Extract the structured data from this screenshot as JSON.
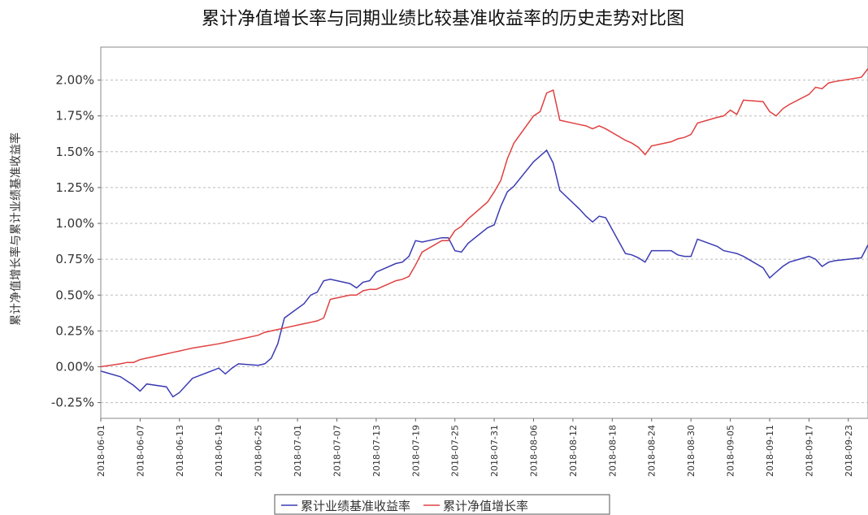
{
  "chart_data": {
    "type": "line",
    "title": "累计净值增长率与同期业绩比较基准收益率的历史走势对比图",
    "y_label": "累计净值增长率与累计业绩基准收益率",
    "x": [
      "2018-06-01",
      "2018-06-04",
      "2018-06-05",
      "2018-06-06",
      "2018-06-07",
      "2018-06-08",
      "2018-06-11",
      "2018-06-12",
      "2018-06-13",
      "2018-06-14",
      "2018-06-15",
      "2018-06-19",
      "2018-06-20",
      "2018-06-21",
      "2018-06-22",
      "2018-06-25",
      "2018-06-26",
      "2018-06-27",
      "2018-06-28",
      "2018-06-29",
      "2018-07-02",
      "2018-07-03",
      "2018-07-04",
      "2018-07-05",
      "2018-07-06",
      "2018-07-09",
      "2018-07-10",
      "2018-07-11",
      "2018-07-12",
      "2018-07-13",
      "2018-07-16",
      "2018-07-17",
      "2018-07-18",
      "2018-07-19",
      "2018-07-20",
      "2018-07-23",
      "2018-07-24",
      "2018-07-25",
      "2018-07-26",
      "2018-07-27",
      "2018-07-30",
      "2018-07-31",
      "2018-08-01",
      "2018-08-02",
      "2018-08-03",
      "2018-08-06",
      "2018-08-07",
      "2018-08-08",
      "2018-08-09",
      "2018-08-10",
      "2018-08-13",
      "2018-08-14",
      "2018-08-15",
      "2018-08-16",
      "2018-08-17",
      "2018-08-20",
      "2018-08-21",
      "2018-08-22",
      "2018-08-23",
      "2018-08-24",
      "2018-08-27",
      "2018-08-28",
      "2018-08-29",
      "2018-08-30",
      "2018-08-31",
      "2018-09-03",
      "2018-09-04",
      "2018-09-05",
      "2018-09-06",
      "2018-09-07",
      "2018-09-10",
      "2018-09-11",
      "2018-09-12",
      "2018-09-13",
      "2018-09-14",
      "2018-09-17",
      "2018-09-18",
      "2018-09-19",
      "2018-09-20",
      "2018-09-21",
      "2018-09-25",
      "2018-09-26"
    ],
    "series": [
      {
        "name": "累计业绩基准收益率",
        "color": "#3b3bb3",
        "values": [
          -0.03,
          -0.07,
          -0.1,
          -0.13,
          -0.17,
          -0.12,
          -0.14,
          -0.21,
          -0.18,
          -0.13,
          -0.08,
          -0.01,
          -0.05,
          -0.01,
          0.02,
          0.01,
          0.02,
          0.06,
          0.16,
          0.34,
          0.44,
          0.5,
          0.52,
          0.6,
          0.61,
          0.58,
          0.55,
          0.59,
          0.6,
          0.66,
          0.72,
          0.73,
          0.77,
          0.88,
          0.87,
          0.9,
          0.9,
          0.81,
          0.8,
          0.86,
          0.97,
          0.99,
          1.12,
          1.22,
          1.26,
          1.43,
          1.47,
          1.51,
          1.42,
          1.23,
          1.1,
          1.05,
          1.01,
          1.05,
          1.04,
          0.79,
          0.78,
          0.76,
          0.73,
          0.81,
          0.81,
          0.78,
          0.77,
          0.77,
          0.89,
          0.84,
          0.81,
          0.8,
          0.79,
          0.77,
          0.69,
          0.62,
          0.66,
          0.7,
          0.73,
          0.77,
          0.75,
          0.7,
          0.73,
          0.74,
          0.76,
          0.85
        ]
      },
      {
        "name": "累计净值增长率",
        "color": "#e04040",
        "values": [
          0.0,
          0.02,
          0.03,
          0.03,
          0.05,
          0.06,
          0.09,
          0.1,
          0.11,
          0.12,
          0.13,
          0.16,
          0.17,
          0.18,
          0.19,
          0.22,
          0.24,
          0.25,
          0.26,
          0.27,
          0.3,
          0.31,
          0.32,
          0.34,
          0.47,
          0.5,
          0.5,
          0.53,
          0.54,
          0.54,
          0.6,
          0.61,
          0.63,
          0.71,
          0.8,
          0.88,
          0.88,
          0.95,
          0.98,
          1.03,
          1.15,
          1.22,
          1.3,
          1.45,
          1.56,
          1.75,
          1.78,
          1.91,
          1.93,
          1.72,
          1.69,
          1.68,
          1.66,
          1.68,
          1.66,
          1.58,
          1.56,
          1.53,
          1.48,
          1.54,
          1.57,
          1.59,
          1.6,
          1.62,
          1.7,
          1.74,
          1.75,
          1.79,
          1.76,
          1.86,
          1.85,
          1.78,
          1.75,
          1.8,
          1.83,
          1.9,
          1.95,
          1.94,
          1.98,
          1.99,
          2.02,
          2.08
        ]
      }
    ],
    "xlim": [
      "2018-06-01",
      "2018-09-26"
    ],
    "xticks": [
      "2018-06-01",
      "2018-06-07",
      "2018-06-13",
      "2018-06-19",
      "2018-06-25",
      "2018-07-01",
      "2018-07-07",
      "2018-07-13",
      "2018-07-19",
      "2018-07-25",
      "2018-07-31",
      "2018-08-06",
      "2018-08-12",
      "2018-08-18",
      "2018-08-24",
      "2018-08-30",
      "2018-09-05",
      "2018-09-11",
      "2018-09-17",
      "2018-09-23"
    ],
    "ylim": [
      -0.36,
      2.23
    ],
    "yticks": [
      {
        "value": -0.25,
        "label": "-0.25%"
      },
      {
        "value": 0,
        "label": "0.00%"
      },
      {
        "value": 0.25,
        "label": "0.25%"
      },
      {
        "value": 0.5,
        "label": "0.50%"
      },
      {
        "value": 0.75,
        "label": "0.75%"
      },
      {
        "value": 1,
        "label": "1.00%"
      },
      {
        "value": 1.25,
        "label": "1.25%"
      },
      {
        "value": 1.5,
        "label": "1.50%"
      },
      {
        "value": 1.75,
        "label": "1.75%"
      },
      {
        "value": 2,
        "label": "2.00%"
      }
    ],
    "grid": true
  }
}
